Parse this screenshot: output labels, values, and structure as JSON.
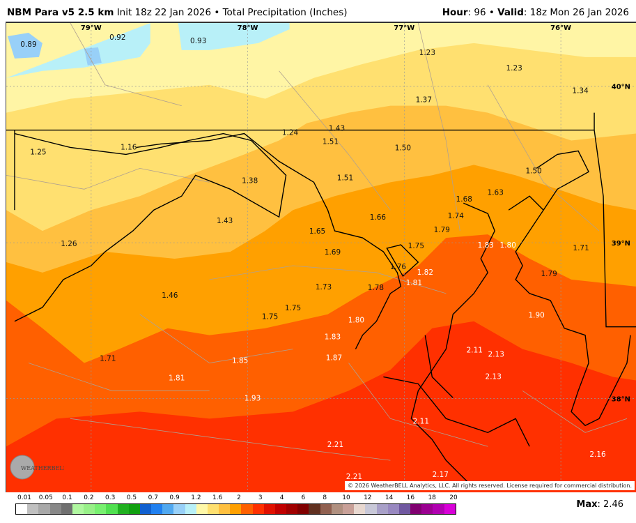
{
  "header": {
    "model": "NBM Para v5 2.5 km",
    "init": "Init 18z 22 Jan 2026",
    "sep": "•",
    "product": "Total Precipitation (Inches)",
    "hour_label": "Hour",
    "hour": ": 96",
    "valid_label": "Valid",
    "valid": ": 18z Mon 26 Jan 2026"
  },
  "map": {
    "lon_labels": [
      "79°W",
      "78°W",
      "77°W",
      "76°W"
    ],
    "lat_labels": [
      "40°N",
      "39°N",
      "38°N"
    ],
    "values": [
      "0.89",
      "0.92",
      "0.93",
      "1.23",
      "1.23",
      "1.34",
      "1.37",
      "1.24",
      "1.43",
      "1.51",
      "1.50",
      "1.25",
      "1.16",
      "1.50",
      "1.38",
      "1.51",
      "1.63",
      "1.68",
      "1.66",
      "1.74",
      "1.43",
      "1.65",
      "1.79",
      "1.83",
      "1.80",
      "1.71",
      "1.26",
      "1.75",
      "1.69",
      "1.76",
      "1.82",
      "1.81",
      "1.79",
      "1.73",
      "1.78",
      "1.46",
      "1.75",
      "1.75",
      "1.80",
      "1.90",
      "1.83",
      "2.11",
      "2.13",
      "1.71",
      "1.85",
      "1.87",
      "1.81",
      "2.13",
      "1.93",
      "2.11",
      "2.21",
      "2.16",
      "2.17",
      "2.21"
    ],
    "logo": "WEATHERBELL",
    "copyright": "© 2026 WeatherBELL Analytics, LLC. All rights reserved. License required for commercial distribution."
  },
  "colorbar": {
    "ticks": [
      "0.01",
      "0.05",
      "0.1",
      "0.2",
      "0.3",
      "0.5",
      "0.7",
      "0.9",
      "1.2",
      "1.6",
      "2",
      "3",
      "4",
      "6",
      "8",
      "10",
      "12",
      "14",
      "16",
      "18",
      "20"
    ],
    "colors": [
      "#ffffff",
      "#c0c0c0",
      "#a8a8a8",
      "#888888",
      "#707070",
      "#b0f7a0",
      "#98f088",
      "#78f070",
      "#50e050",
      "#20b020",
      "#10a010",
      "#1060d0",
      "#2080f0",
      "#50a8f0",
      "#98d0f8",
      "#b8f0f8",
      "#fff8a8",
      "#ffe070",
      "#ffc040",
      "#ffa000",
      "#ff6000",
      "#ff3000",
      "#e01000",
      "#c00000",
      "#a00000",
      "#800000",
      "#603020",
      "#906050",
      "#b09080",
      "#c8a098",
      "#e8d8d0",
      "#c8c8d8",
      "#a8a0c8",
      "#9888c0",
      "#7058a0",
      "#800070",
      "#9a0090",
      "#b000b0",
      "#d800d8"
    ]
  },
  "max": {
    "label": "Max",
    "value": ": 2.46"
  }
}
